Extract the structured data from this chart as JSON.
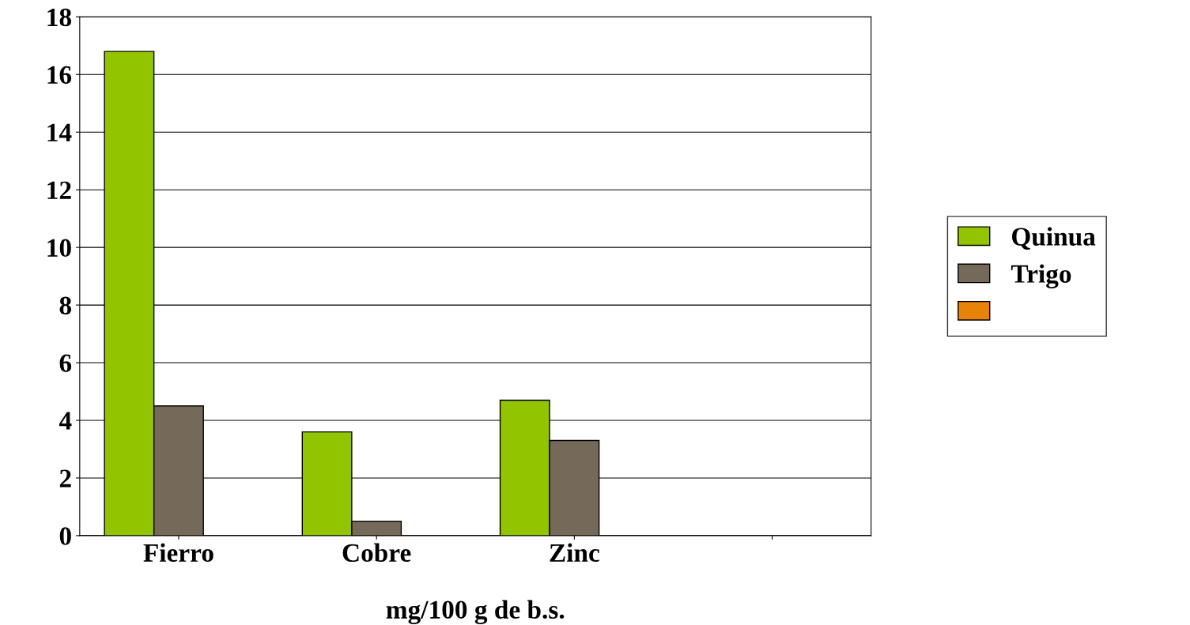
{
  "chart_data": {
    "type": "bar",
    "xlabel": "mg/100 g de b.s.",
    "categories": [
      "Fierro",
      "Cobre",
      "Zinc",
      null
    ],
    "series": [
      {
        "name": "Quinua",
        "color": "#92c400",
        "values": [
          16.8,
          3.6,
          4.7,
          null
        ]
      },
      {
        "name": "Trigo",
        "color": "#75695a",
        "values": [
          4.5,
          0.5,
          3.3,
          null
        ]
      },
      {
        "color": "#e8830a",
        "values": [
          null,
          null,
          null,
          null
        ]
      }
    ],
    "ylim": [
      0,
      18
    ],
    "yticks": [
      0,
      2,
      4,
      6,
      8,
      10,
      12,
      14,
      16,
      18
    ],
    "grid": "y",
    "legend": "right"
  }
}
